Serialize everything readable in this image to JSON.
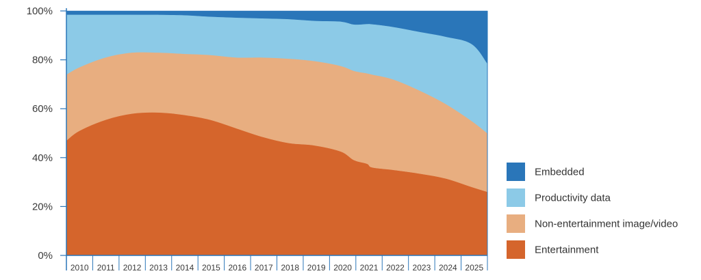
{
  "chart_data": {
    "type": "area",
    "stacked": true,
    "percent": true,
    "title": "",
    "xlabel": "",
    "ylabel": "",
    "ylim": [
      0,
      100
    ],
    "x": [
      2009.5,
      2010,
      2011,
      2012,
      2013,
      2014,
      2015,
      2016,
      2017,
      2018,
      2019,
      2020,
      2020.5,
      2021,
      2021.2,
      2022,
      2023,
      2024,
      2025,
      2025.6
    ],
    "x_tick_labels": [
      "2010",
      "2011",
      "2012",
      "2013",
      "2014",
      "2015",
      "2016",
      "2017",
      "2018",
      "2019",
      "2020",
      "2021",
      "2022",
      "2023",
      "2024",
      "2025"
    ],
    "y_tick_labels": [
      "0%",
      "20%",
      "40%",
      "60%",
      "80%",
      "100%"
    ],
    "y_tick_values": [
      0,
      20,
      40,
      60,
      80,
      100
    ],
    "grid": false,
    "legend_position": "bottom-right",
    "series": [
      {
        "name": "Entertainment",
        "color": "#d5652c",
        "values": [
          47,
          51,
          55.5,
          58,
          58.5,
          57.5,
          55.5,
          52,
          48.5,
          46,
          45,
          42.5,
          39,
          37.5,
          36,
          35,
          33.5,
          31.5,
          28,
          26
        ]
      },
      {
        "name": "Non-entertainment image/video",
        "color": "#e8ae80",
        "values": [
          27,
          26,
          25.5,
          25,
          24.5,
          25,
          26.5,
          29,
          32.5,
          34.5,
          34.5,
          35,
          36.5,
          37,
          38,
          37,
          34,
          30.5,
          27,
          24
        ]
      },
      {
        "name": "Productivity data",
        "color": "#8ccae7",
        "values": [
          24.5,
          21.5,
          17.5,
          15.5,
          15.5,
          15.8,
          15.7,
          16.3,
          16,
          16.2,
          16.5,
          18.2,
          19,
          20.2,
          20.6,
          21.5,
          24,
          27.5,
          31.5,
          28.5
        ]
      },
      {
        "name": "Embedded",
        "color": "#2a76b9",
        "values": [
          1.5,
          1.5,
          1.5,
          1.5,
          1.5,
          1.7,
          2.3,
          2.7,
          3,
          3.3,
          4,
          4.3,
          5.5,
          5.3,
          5.4,
          6.5,
          8.5,
          10.5,
          13.5,
          21.5
        ]
      }
    ]
  }
}
